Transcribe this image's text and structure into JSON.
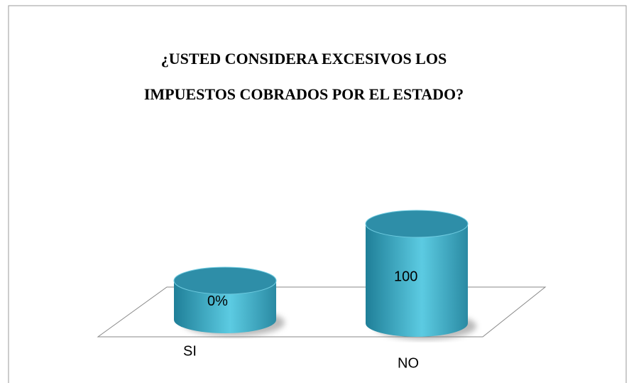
{
  "chart_data": {
    "type": "cylinder",
    "title": "¿USTED CONSIDERA EXCESIVOS LOS IMPUESTOS COBRADOS POR EL ESTADO?",
    "categories": [
      "SI",
      "NO"
    ],
    "values": [
      0,
      100
    ],
    "value_labels": [
      "0%",
      "100"
    ],
    "color": "#3aa6c0"
  }
}
